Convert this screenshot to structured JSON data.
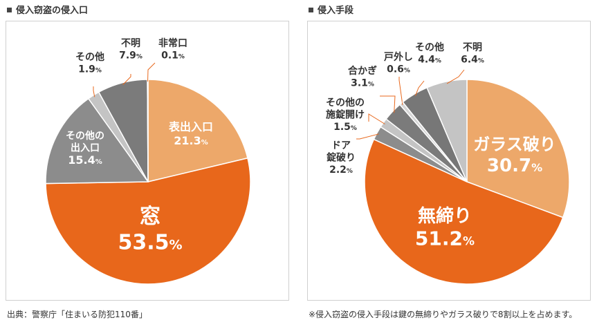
{
  "chart_data": [
    {
      "type": "pie",
      "title": "侵入窃盗の侵入口",
      "slices": [
        {
          "label_lines": [
            "表出入口"
          ],
          "value": 21.3,
          "value_text": "21.3",
          "unit": "%",
          "color": "#eda86a"
        },
        {
          "label_lines": [
            "窓"
          ],
          "value": 53.5,
          "value_text": "53.5",
          "unit": "%",
          "color": "#e8671b"
        },
        {
          "label_lines": [
            "その他の",
            "出入口"
          ],
          "value": 15.4,
          "value_text": "15.4",
          "unit": "%",
          "color": "#8c8c8c"
        },
        {
          "label_lines": [
            "その他"
          ],
          "value": 1.9,
          "value_text": "1.9",
          "unit": "%",
          "color": "#c4c4c4"
        },
        {
          "label_lines": [
            "不明"
          ],
          "value": 7.9,
          "value_text": "7.9",
          "unit": "%",
          "color": "#7b7b7b"
        },
        {
          "label_lines": [
            "非常口"
          ],
          "value": 0.1,
          "value_text": "0.1",
          "unit": "%",
          "color": "#e6e6e6"
        }
      ]
    },
    {
      "type": "pie",
      "title": "侵入手段",
      "slices": [
        {
          "label_lines": [
            "ガラス破り"
          ],
          "value": 30.7,
          "value_text": "30.7",
          "unit": "%",
          "color": "#eda86a"
        },
        {
          "label_lines": [
            "無締り"
          ],
          "value": 51.2,
          "value_text": "51.2",
          "unit": "%",
          "color": "#e8671b"
        },
        {
          "label_lines": [
            "ドア",
            "錠破り"
          ],
          "value": 2.2,
          "value_text": "2.2",
          "unit": "%",
          "color": "#8c8c8c"
        },
        {
          "label_lines": [
            "その他の",
            "施錠開け"
          ],
          "value": 1.5,
          "value_text": "1.5",
          "unit": "%",
          "color": "#c4c4c4"
        },
        {
          "label_lines": [
            "合かぎ"
          ],
          "value": 3.1,
          "value_text": "3.1",
          "unit": "%",
          "color": "#7b7b7b"
        },
        {
          "label_lines": [
            "戸外し"
          ],
          "value": 0.6,
          "value_text": "0.6",
          "unit": "%",
          "color": "#d6d6d6"
        },
        {
          "label_lines": [
            "その他"
          ],
          "value": 4.4,
          "value_text": "4.4",
          "unit": "%",
          "color": "#777777"
        },
        {
          "label_lines": [
            "不明"
          ],
          "value": 6.4,
          "value_text": "6.4",
          "unit": "%",
          "color": "#c4c4c4"
        }
      ]
    }
  ],
  "footnotes": {
    "left": "出典：警察庁「住まいる防犯110番」",
    "right": "※侵入窃盗の侵入手段は鍵の無締りやガラス破りで8割以上を占めます。"
  }
}
